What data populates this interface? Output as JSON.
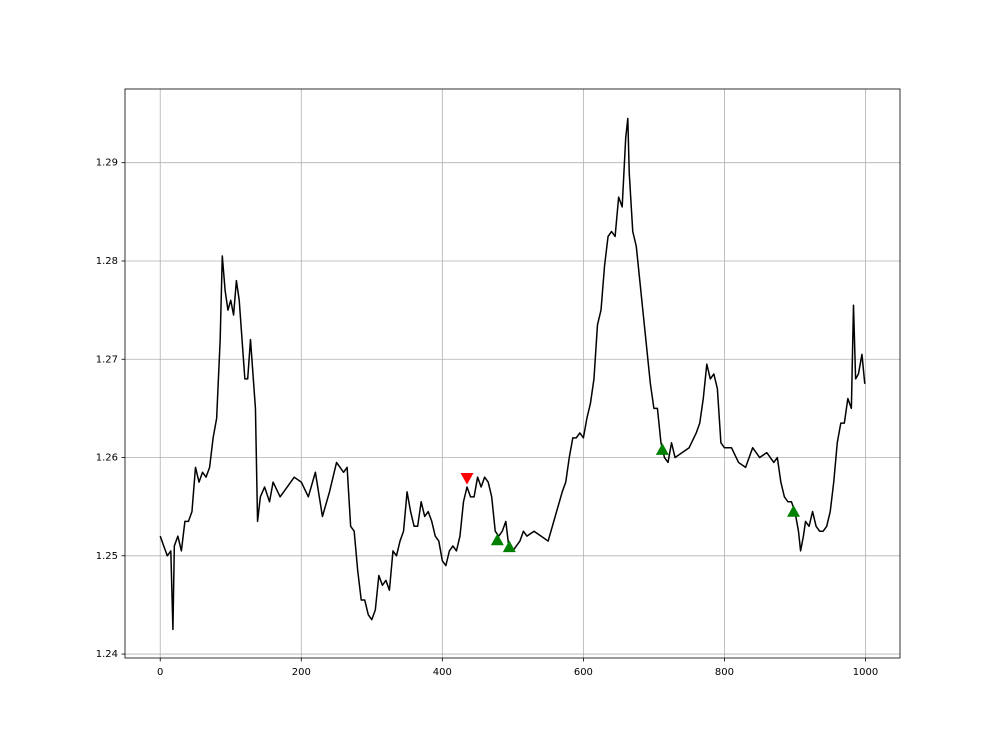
{
  "chart_data": {
    "type": "line",
    "xlim": [
      -49.95,
      1048.95
    ],
    "ylim": [
      1.2396,
      1.2975
    ],
    "xticks": [
      0,
      200,
      400,
      600,
      800,
      1000
    ],
    "yticks": [
      1.24,
      1.25,
      1.26,
      1.27,
      1.28,
      1.29
    ],
    "grid": true,
    "series": [
      {
        "color": "#000000",
        "marker": "none",
        "x": [
          0,
          5,
          10,
          15,
          18,
          20,
          25,
          30,
          35,
          40,
          45,
          50,
          55,
          60,
          65,
          70,
          75,
          80,
          85,
          88,
          92,
          96,
          100,
          104,
          108,
          112,
          116,
          120,
          124,
          128,
          132,
          135,
          138,
          142,
          148,
          155,
          160,
          170,
          180,
          190,
          200,
          210,
          220,
          230,
          240,
          250,
          260,
          265,
          270,
          275,
          280,
          285,
          290,
          295,
          300,
          305,
          310,
          315,
          320,
          325,
          330,
          335,
          340,
          345,
          350,
          355,
          360,
          365,
          370,
          375,
          380,
          385,
          390,
          395,
          400,
          405,
          410,
          415,
          420,
          425,
          430,
          435,
          440,
          445,
          450,
          455,
          460,
          465,
          470,
          475,
          480,
          485,
          490,
          495,
          500,
          505,
          510,
          515,
          520,
          530,
          540,
          550,
          560,
          570,
          575,
          580,
          585,
          590,
          595,
          600,
          605,
          610,
          615,
          620,
          625,
          630,
          635,
          640,
          645,
          650,
          655,
          660,
          663,
          665,
          670,
          675,
          680,
          685,
          690,
          695,
          700,
          705,
          710,
          715,
          720,
          725,
          730,
          740,
          750,
          760,
          765,
          770,
          775,
          780,
          785,
          790,
          795,
          800,
          810,
          820,
          830,
          840,
          850,
          860,
          870,
          875,
          880,
          885,
          890,
          895,
          900,
          905,
          908,
          912,
          915,
          920,
          925,
          930,
          935,
          940,
          945,
          950,
          955,
          960,
          965,
          970,
          975,
          980,
          983,
          986,
          990,
          995,
          999
        ],
        "values": [
          1.252,
          1.251,
          1.25,
          1.2505,
          1.2425,
          1.251,
          1.252,
          1.2505,
          1.2535,
          1.2535,
          1.2545,
          1.259,
          1.2575,
          1.2585,
          1.258,
          1.259,
          1.262,
          1.264,
          1.272,
          1.2805,
          1.277,
          1.275,
          1.276,
          1.2745,
          1.278,
          1.276,
          1.272,
          1.268,
          1.268,
          1.272,
          1.268,
          1.265,
          1.2535,
          1.256,
          1.257,
          1.2555,
          1.2575,
          1.256,
          1.257,
          1.258,
          1.2575,
          1.256,
          1.2585,
          1.254,
          1.2565,
          1.2595,
          1.2585,
          1.259,
          1.253,
          1.2525,
          1.2485,
          1.2455,
          1.2455,
          1.244,
          1.2435,
          1.2445,
          1.248,
          1.247,
          1.2475,
          1.2465,
          1.2505,
          1.25,
          1.2515,
          1.2525,
          1.2565,
          1.2545,
          1.253,
          1.253,
          1.2555,
          1.254,
          1.2545,
          1.2535,
          1.252,
          1.2515,
          1.2495,
          1.249,
          1.2505,
          1.251,
          1.2505,
          1.252,
          1.2555,
          1.257,
          1.256,
          1.256,
          1.258,
          1.257,
          1.258,
          1.2575,
          1.256,
          1.2525,
          1.252,
          1.2525,
          1.2535,
          1.2505,
          1.2505,
          1.251,
          1.2515,
          1.2525,
          1.252,
          1.2525,
          1.252,
          1.2515,
          1.254,
          1.2565,
          1.2575,
          1.26,
          1.262,
          1.262,
          1.2625,
          1.262,
          1.264,
          1.2655,
          1.268,
          1.2735,
          1.275,
          1.2795,
          1.2825,
          1.283,
          1.2825,
          1.2865,
          1.2855,
          1.2925,
          1.2945,
          1.289,
          1.283,
          1.2815,
          1.278,
          1.2745,
          1.271,
          1.2675,
          1.265,
          1.265,
          1.2615,
          1.26,
          1.2595,
          1.2615,
          1.26,
          1.2605,
          1.261,
          1.2625,
          1.2635,
          1.266,
          1.2695,
          1.268,
          1.2685,
          1.267,
          1.2615,
          1.261,
          1.261,
          1.2595,
          1.259,
          1.261,
          1.26,
          1.2605,
          1.2595,
          1.26,
          1.2575,
          1.256,
          1.2555,
          1.2555,
          1.2545,
          1.2525,
          1.2505,
          1.252,
          1.2535,
          1.253,
          1.2545,
          1.253,
          1.2525,
          1.2525,
          1.253,
          1.2545,
          1.2575,
          1.2615,
          1.2635,
          1.2635,
          1.266,
          1.265,
          1.2755,
          1.268,
          1.2685,
          1.2705,
          1.2675
        ]
      },
      {
        "color": "#ff0000",
        "marker": "v",
        "x": [
          435
        ],
        "values": [
          1.2579
        ]
      },
      {
        "color": "#008000",
        "marker": "^",
        "x": [
          478,
          495,
          712,
          898
        ],
        "values": [
          1.2516,
          1.2509,
          1.2608,
          1.2545
        ]
      }
    ]
  }
}
